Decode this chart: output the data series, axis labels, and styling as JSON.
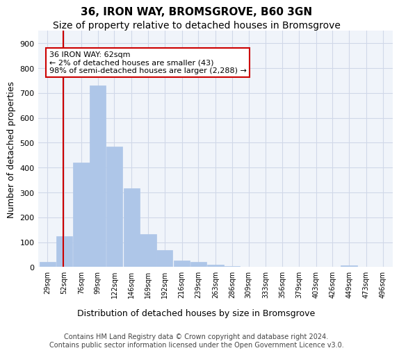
{
  "title": "36, IRON WAY, BROMSGROVE, B60 3GN",
  "subtitle": "Size of property relative to detached houses in Bromsgrove",
  "xlabel": "Distribution of detached houses by size in Bromsgrove",
  "ylabel": "Number of detached properties",
  "bar_values": [
    20,
    125,
    420,
    730,
    485,
    318,
    132,
    68,
    25,
    22,
    10,
    5,
    2,
    0,
    0,
    0,
    0,
    0,
    8,
    0
  ],
  "bin_labels": [
    "29sqm",
    "52sqm",
    "76sqm",
    "99sqm",
    "122sqm",
    "146sqm",
    "169sqm",
    "192sqm",
    "216sqm",
    "239sqm",
    "263sqm",
    "286sqm",
    "309sqm",
    "333sqm",
    "356sqm",
    "379sqm",
    "403sqm",
    "426sqm",
    "449sqm",
    "473sqm",
    "496sqm"
  ],
  "bar_color": "#aec6e8",
  "bar_edge_color": "#aec6e8",
  "grid_color": "#d0d8e8",
  "background_color": "#f0f4fa",
  "vline_x": 62,
  "vline_color": "#cc0000",
  "annotation_text": "36 IRON WAY: 62sqm\n← 2% of detached houses are smaller (43)\n98% of semi-detached houses are larger (2,288) →",
  "annotation_box_color": "#ffffff",
  "annotation_box_edge": "#cc0000",
  "ylim": [
    0,
    950
  ],
  "yticks": [
    0,
    100,
    200,
    300,
    400,
    500,
    600,
    700,
    800,
    900
  ],
  "bin_edges": [
    29,
    52,
    76,
    99,
    122,
    146,
    169,
    192,
    216,
    239,
    263,
    286,
    309,
    333,
    356,
    379,
    403,
    426,
    449,
    473,
    496
  ],
  "footer_text": "Contains HM Land Registry data © Crown copyright and database right 2024.\nContains public sector information licensed under the Open Government Licence v3.0.",
  "title_fontsize": 11,
  "subtitle_fontsize": 10,
  "axis_label_fontsize": 9,
  "tick_fontsize": 8,
  "footer_fontsize": 7
}
